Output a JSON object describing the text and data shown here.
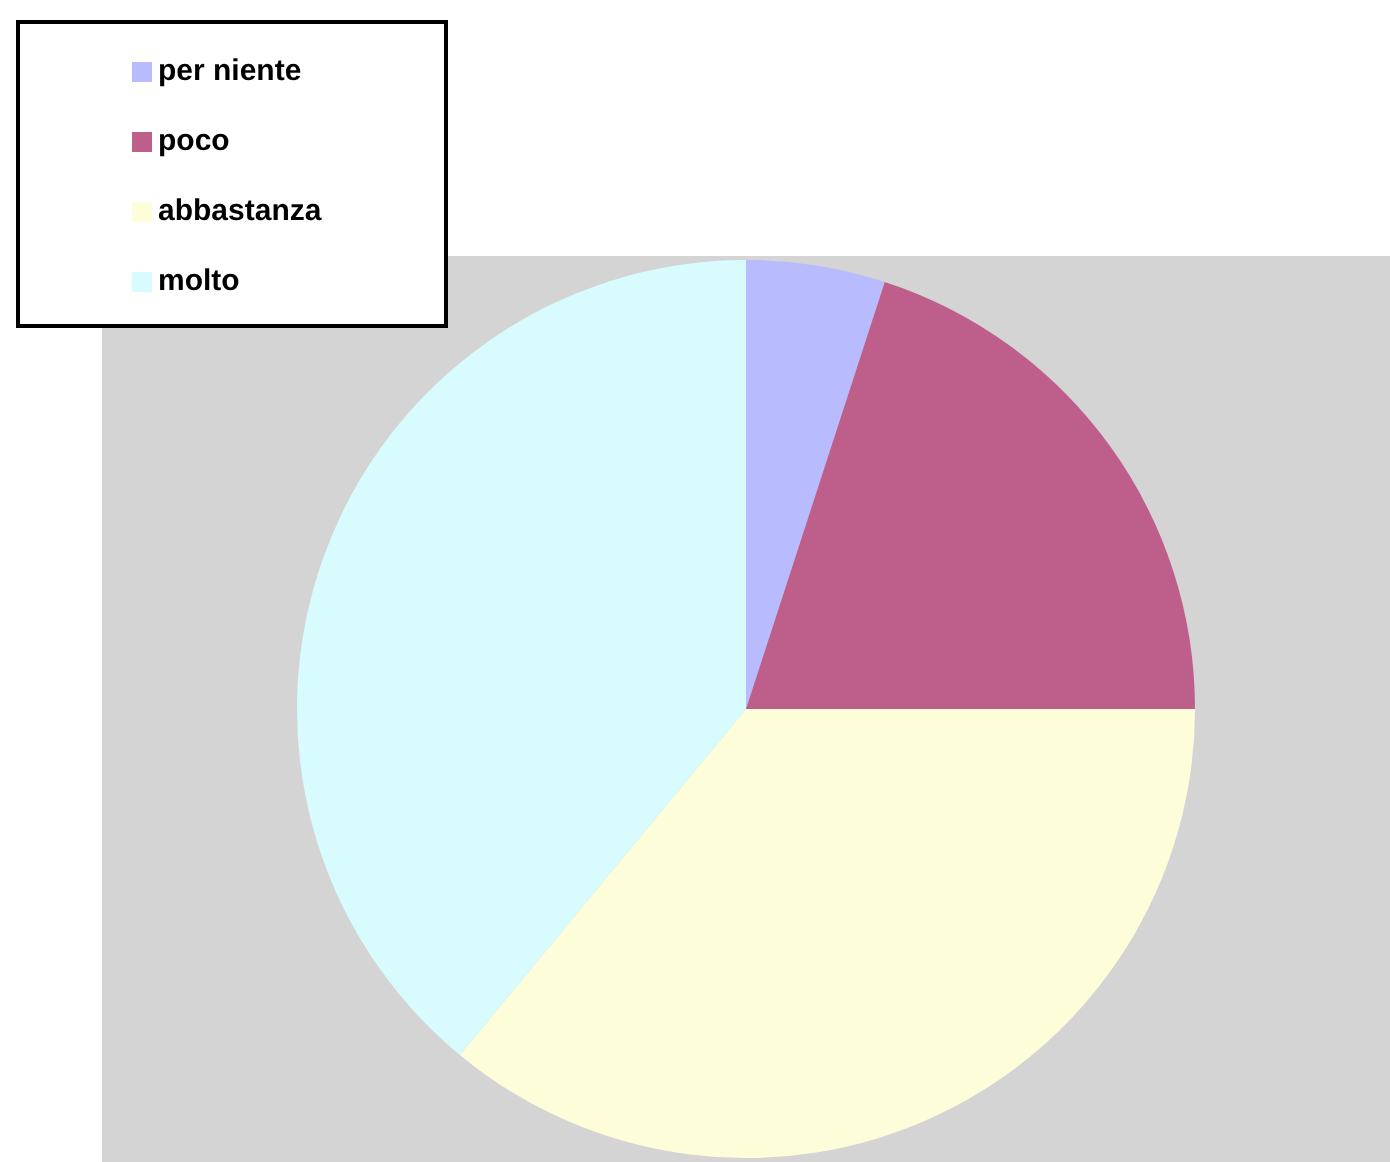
{
  "chart_data": {
    "type": "pie",
    "categories": [
      "per niente",
      "poco",
      "abbastanza",
      "molto"
    ],
    "values": [
      5,
      20,
      36,
      39
    ],
    "colors": [
      "#b8bcff",
      "#bd5f8a",
      "#fdfdd9",
      "#d8fcfd"
    ],
    "legend": "top left"
  }
}
